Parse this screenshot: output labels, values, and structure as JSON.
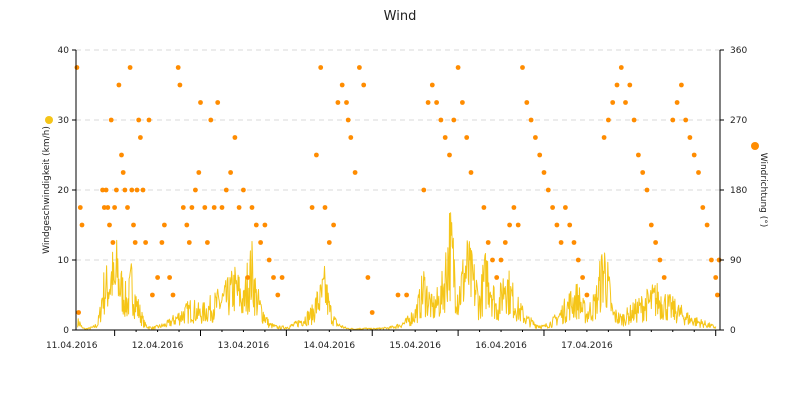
{
  "chart_data": {
    "type": "line+scatter",
    "title": "Wind",
    "x_ticks": [
      "11.04.2016",
      "12.04.2016",
      "13.04.2016",
      "14.04.2016",
      "15.04.2016",
      "16.04.2016",
      "17.04.2016"
    ],
    "x_range_days": [
      10.55,
      18.05
    ],
    "y_left": {
      "label": "Windgeschwindigkeit (km/h)",
      "range": [
        0,
        40
      ],
      "ticks": [
        "0",
        "10",
        "20",
        "30",
        "40"
      ]
    },
    "y_right": {
      "label": "Windrichtung (°)",
      "range": [
        0,
        360
      ],
      "ticks": [
        "0",
        "90",
        "180",
        "270",
        "360"
      ]
    },
    "grid": true,
    "colors": {
      "speed": "#f5c518",
      "direction": "#ff8c00",
      "grid": "#d9d9d9"
    },
    "series": [
      {
        "name": "Windgeschwindigkeit",
        "axis": "left",
        "type": "line",
        "sampled_points": [
          [
            10.57,
            1.5
          ],
          [
            10.6,
            1.2
          ],
          [
            10.62,
            0.4
          ],
          [
            10.66,
            0.2
          ],
          [
            10.7,
            0.3
          ],
          [
            10.75,
            0.5
          ],
          [
            10.8,
            1
          ],
          [
            10.83,
            3
          ],
          [
            10.86,
            7
          ],
          [
            10.9,
            8
          ],
          [
            10.95,
            9
          ],
          [
            10.97,
            10.5
          ],
          [
            11.0,
            8
          ],
          [
            11.03,
            12
          ],
          [
            11.05,
            9
          ],
          [
            11.1,
            7
          ],
          [
            11.12,
            6
          ],
          [
            11.15,
            5
          ],
          [
            11.2,
            9
          ],
          [
            11.25,
            5
          ],
          [
            11.3,
            3
          ],
          [
            11.35,
            1
          ],
          [
            11.4,
            0.5
          ],
          [
            11.45,
            0.4
          ],
          [
            11.5,
            0.6
          ],
          [
            11.6,
            1
          ],
          [
            11.7,
            2
          ],
          [
            11.8,
            3
          ],
          [
            11.9,
            4
          ],
          [
            12.0,
            3
          ],
          [
            12.1,
            4
          ],
          [
            12.2,
            5
          ],
          [
            12.3,
            6
          ],
          [
            12.35,
            7
          ],
          [
            12.4,
            8
          ],
          [
            12.45,
            7
          ],
          [
            12.5,
            5
          ],
          [
            12.55,
            9
          ],
          [
            12.6,
            11
          ],
          [
            12.65,
            6
          ],
          [
            12.7,
            4
          ],
          [
            12.8,
            1
          ],
          [
            12.9,
            0.5
          ],
          [
            13.0,
            0.5
          ],
          [
            13.1,
            1
          ],
          [
            13.2,
            2
          ],
          [
            13.3,
            3
          ],
          [
            13.35,
            5
          ],
          [
            13.4,
            6
          ],
          [
            13.45,
            8
          ],
          [
            13.5,
            4
          ],
          [
            13.55,
            2
          ],
          [
            13.6,
            1
          ],
          [
            13.7,
            0.3
          ],
          [
            13.8,
            0.2
          ],
          [
            13.9,
            0.3
          ],
          [
            14.0,
            0.2
          ],
          [
            14.1,
            0.3
          ],
          [
            14.2,
            0.4
          ],
          [
            14.3,
            0.8
          ],
          [
            14.4,
            1.5
          ],
          [
            14.5,
            3
          ],
          [
            14.55,
            5
          ],
          [
            14.6,
            8
          ],
          [
            14.65,
            6
          ],
          [
            14.7,
            4
          ],
          [
            14.8,
            6
          ],
          [
            14.85,
            10
          ],
          [
            14.9,
            16
          ],
          [
            14.95,
            12
          ],
          [
            15.0,
            6
          ],
          [
            15.05,
            9
          ],
          [
            15.1,
            12
          ],
          [
            15.15,
            10
          ],
          [
            15.2,
            8
          ],
          [
            15.25,
            5
          ],
          [
            15.3,
            9
          ],
          [
            15.35,
            11
          ],
          [
            15.4,
            7
          ],
          [
            15.45,
            4
          ],
          [
            15.5,
            6
          ],
          [
            15.55,
            10
          ],
          [
            15.6,
            7
          ],
          [
            15.7,
            4
          ],
          [
            15.8,
            2
          ],
          [
            15.9,
            1
          ],
          [
            16.0,
            0.6
          ],
          [
            16.1,
            1.5
          ],
          [
            16.2,
            3
          ],
          [
            16.3,
            5
          ],
          [
            16.4,
            6
          ],
          [
            16.45,
            4
          ],
          [
            16.5,
            3
          ],
          [
            16.6,
            5
          ],
          [
            16.7,
            12
          ],
          [
            16.75,
            8
          ],
          [
            16.8,
            3
          ],
          [
            16.9,
            2
          ],
          [
            17.0,
            3
          ],
          [
            17.1,
            4
          ],
          [
            17.2,
            5
          ],
          [
            17.3,
            6
          ],
          [
            17.4,
            5
          ],
          [
            17.5,
            4
          ],
          [
            17.6,
            3
          ],
          [
            17.7,
            2
          ],
          [
            17.8,
            1.5
          ],
          [
            17.9,
            1
          ],
          [
            18.0,
            0.5
          ]
        ]
      },
      {
        "name": "Windrichtung",
        "axis": "right",
        "type": "scatter",
        "points": [
          [
            10.56,
            337.5
          ],
          [
            10.6,
            157.5
          ],
          [
            10.62,
            135
          ],
          [
            10.58,
            22.5
          ],
          [
            10.86,
            180
          ],
          [
            10.88,
            157.5
          ],
          [
            10.9,
            180
          ],
          [
            10.92,
            157.5
          ],
          [
            10.94,
            135
          ],
          [
            10.96,
            270
          ],
          [
            10.98,
            112.5
          ],
          [
            11.0,
            157.5
          ],
          [
            11.02,
            180
          ],
          [
            11.05,
            315
          ],
          [
            11.08,
            225
          ],
          [
            11.1,
            202.5
          ],
          [
            11.12,
            180
          ],
          [
            11.15,
            157.5
          ],
          [
            11.18,
            337.5
          ],
          [
            11.2,
            180
          ],
          [
            11.22,
            135
          ],
          [
            11.24,
            112.5
          ],
          [
            11.26,
            180
          ],
          [
            11.28,
            270
          ],
          [
            11.3,
            247.5
          ],
          [
            11.33,
            180
          ],
          [
            11.36,
            112.5
          ],
          [
            11.4,
            270
          ],
          [
            11.44,
            45
          ],
          [
            11.5,
            67.5
          ],
          [
            11.55,
            112.5
          ],
          [
            11.58,
            135
          ],
          [
            11.64,
            67.5
          ],
          [
            11.68,
            45
          ],
          [
            11.74,
            337.5
          ],
          [
            11.76,
            315
          ],
          [
            11.8,
            157.5
          ],
          [
            11.84,
            135
          ],
          [
            11.87,
            112.5
          ],
          [
            11.9,
            157.5
          ],
          [
            11.94,
            180
          ],
          [
            11.98,
            202.5
          ],
          [
            12.0,
            292.5
          ],
          [
            12.05,
            157.5
          ],
          [
            12.08,
            112.5
          ],
          [
            12.12,
            270
          ],
          [
            12.16,
            157.5
          ],
          [
            12.2,
            292.5
          ],
          [
            12.25,
            157.5
          ],
          [
            12.3,
            180
          ],
          [
            12.35,
            202.5
          ],
          [
            12.4,
            247.5
          ],
          [
            12.45,
            157.5
          ],
          [
            12.5,
            180
          ],
          [
            12.55,
            67.5
          ],
          [
            12.6,
            157.5
          ],
          [
            12.65,
            135
          ],
          [
            12.7,
            112.5
          ],
          [
            12.75,
            135
          ],
          [
            12.8,
            90
          ],
          [
            12.85,
            67.5
          ],
          [
            12.9,
            45
          ],
          [
            12.95,
            67.5
          ],
          [
            13.3,
            157.5
          ],
          [
            13.35,
            225
          ],
          [
            13.4,
            337.5
          ],
          [
            13.45,
            157.5
          ],
          [
            13.5,
            112.5
          ],
          [
            13.55,
            135
          ],
          [
            13.6,
            292.5
          ],
          [
            13.65,
            315
          ],
          [
            13.7,
            292.5
          ],
          [
            13.72,
            270
          ],
          [
            13.75,
            247.5
          ],
          [
            13.8,
            202.5
          ],
          [
            13.85,
            337.5
          ],
          [
            13.9,
            315
          ],
          [
            13.95,
            67.5
          ],
          [
            14.0,
            22.5
          ],
          [
            14.3,
            45
          ],
          [
            14.4,
            45
          ],
          [
            14.6,
            180
          ],
          [
            14.65,
            292.5
          ],
          [
            14.7,
            315
          ],
          [
            14.75,
            292.5
          ],
          [
            14.8,
            270
          ],
          [
            14.85,
            247.5
          ],
          [
            14.9,
            225
          ],
          [
            14.95,
            270
          ],
          [
            15.0,
            337.5
          ],
          [
            15.05,
            292.5
          ],
          [
            15.1,
            247.5
          ],
          [
            15.15,
            202.5
          ],
          [
            15.3,
            157.5
          ],
          [
            15.35,
            112.5
          ],
          [
            15.4,
            90
          ],
          [
            15.45,
            67.5
          ],
          [
            15.5,
            90
          ],
          [
            15.55,
            112.5
          ],
          [
            15.6,
            135
          ],
          [
            15.65,
            157.5
          ],
          [
            15.7,
            135
          ],
          [
            15.75,
            337.5
          ],
          [
            15.8,
            292.5
          ],
          [
            15.85,
            270
          ],
          [
            15.9,
            247.5
          ],
          [
            15.95,
            225
          ],
          [
            16.0,
            202.5
          ],
          [
            16.05,
            180
          ],
          [
            16.1,
            157.5
          ],
          [
            16.15,
            135
          ],
          [
            16.2,
            112.5
          ],
          [
            16.25,
            157.5
          ],
          [
            16.3,
            135
          ],
          [
            16.35,
            112.5
          ],
          [
            16.4,
            90
          ],
          [
            16.45,
            67.5
          ],
          [
            16.5,
            45
          ],
          [
            16.7,
            247.5
          ],
          [
            16.75,
            270
          ],
          [
            16.8,
            292.5
          ],
          [
            16.85,
            315
          ],
          [
            16.9,
            337.5
          ],
          [
            16.95,
            292.5
          ],
          [
            17.0,
            315
          ],
          [
            17.05,
            270
          ],
          [
            17.1,
            225
          ],
          [
            17.15,
            202.5
          ],
          [
            17.2,
            180
          ],
          [
            17.25,
            135
          ],
          [
            17.3,
            112.5
          ],
          [
            17.35,
            90
          ],
          [
            17.4,
            67.5
          ],
          [
            17.5,
            270
          ],
          [
            17.55,
            292.5
          ],
          [
            17.6,
            315
          ],
          [
            17.65,
            270
          ],
          [
            17.7,
            247.5
          ],
          [
            17.75,
            225
          ],
          [
            17.8,
            202.5
          ],
          [
            17.85,
            157.5
          ],
          [
            17.9,
            135
          ],
          [
            17.95,
            90
          ],
          [
            18.0,
            67.5
          ],
          [
            18.02,
            45
          ],
          [
            18.04,
            90
          ]
        ]
      }
    ]
  }
}
